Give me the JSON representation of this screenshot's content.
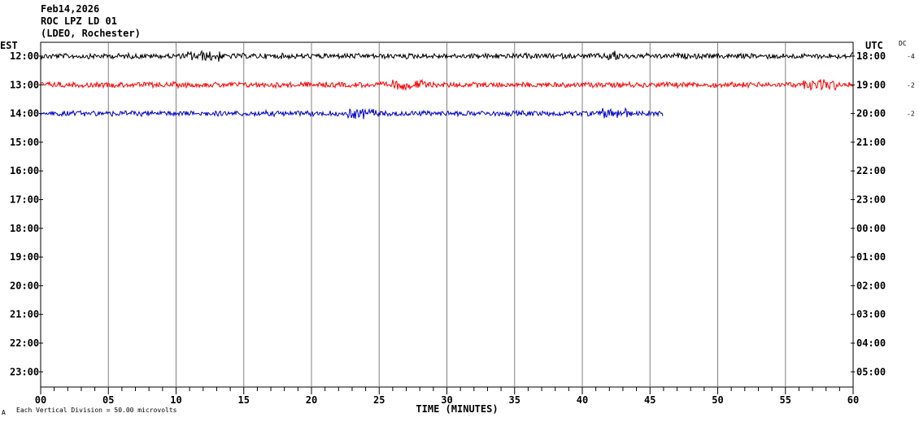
{
  "header": {
    "date": "Feb14,2026",
    "station": "ROC LPZ LD 01",
    "network": "(LDEO, Rochester)"
  },
  "footer": {
    "scale_note": "Each Vertical Division =   50.00 microvolts",
    "corner_mark": "A"
  },
  "chart_data": {
    "type": "line",
    "title": "",
    "xlabel": "TIME (MINUTES)",
    "left_axis_label": "EST",
    "right_axis_label": "UTC",
    "dc_label": "DC",
    "xlim": [
      0,
      60
    ],
    "x_ticks": [
      "00",
      "05",
      "10",
      "15",
      "20",
      "25",
      "30",
      "35",
      "40",
      "45",
      "50",
      "55",
      "60"
    ],
    "x_minor_step": 1,
    "grid": "vertical-every-5-min",
    "rows_est": [
      "12:00",
      "13:00",
      "14:00",
      "15:00",
      "16:00",
      "17:00",
      "18:00",
      "19:00",
      "20:00",
      "21:00",
      "22:00",
      "23:00"
    ],
    "rows_utc": [
      "18:00",
      "19:00",
      "20:00",
      "21:00",
      "22:00",
      "23:00",
      "00:00",
      "01:00",
      "02:00",
      "03:00",
      "04:00",
      "05:00"
    ],
    "series": [
      {
        "row": 0,
        "color": "#000000",
        "end_minute": 60,
        "dc": "-4"
      },
      {
        "row": 1,
        "color": "#ff0000",
        "end_minute": 60,
        "dc": "-2"
      },
      {
        "row": 2,
        "color": "#0000cc",
        "end_minute": 46,
        "dc": "-2"
      }
    ]
  }
}
